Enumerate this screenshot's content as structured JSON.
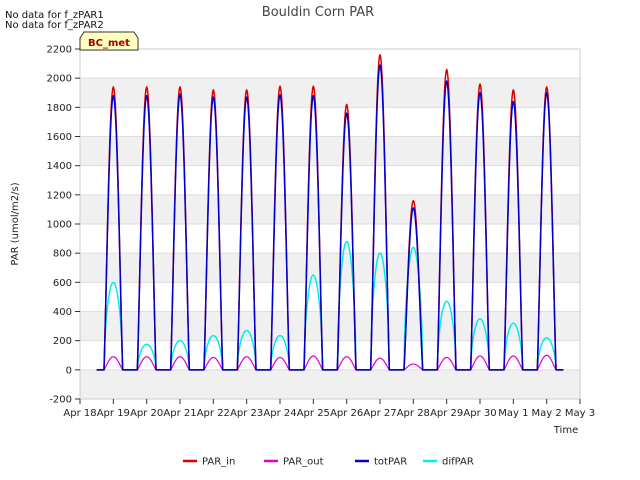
{
  "chart_data": {
    "type": "line",
    "title": "Bouldin Corn PAR",
    "xlabel": "Time",
    "ylabel": "PAR (umol/m2/s)",
    "ylim": [
      -200,
      2200
    ],
    "yticks": [
      -200,
      0,
      200,
      400,
      600,
      800,
      1000,
      1200,
      1400,
      1600,
      1800,
      2000,
      2200
    ],
    "xlim": [
      0,
      15
    ],
    "xtick_labels": [
      "Apr 18",
      "Apr 19",
      "Apr 20",
      "Apr 21",
      "Apr 22",
      "Apr 23",
      "Apr 24",
      "Apr 25",
      "Apr 26",
      "Apr 27",
      "Apr 28",
      "Apr 29",
      "Apr 30",
      "May 1",
      "May 2",
      "May 3"
    ],
    "notes": [
      "No data for f_zPAR1",
      "No data for f_zPAR2"
    ],
    "badge": "BC_met",
    "day_index": [
      1,
      2,
      3,
      4,
      5,
      6,
      7,
      8,
      9,
      10,
      11,
      12,
      13,
      14
    ],
    "series": [
      {
        "name": "PAR_in",
        "color": "#dd0000",
        "daily_peak": [
          1940,
          1940,
          1940,
          1920,
          1920,
          1945,
          1945,
          1820,
          2160,
          1160,
          2060,
          1960,
          1920,
          1940
        ]
      },
      {
        "name": "PAR_out",
        "color": "#dd00dd",
        "daily_peak": [
          90,
          90,
          90,
          85,
          90,
          85,
          95,
          90,
          80,
          40,
          85,
          95,
          95,
          100
        ]
      },
      {
        "name": "totPAR",
        "color": "#0000cc",
        "daily_peak": [
          1880,
          1880,
          1890,
          1870,
          1870,
          1885,
          1880,
          1760,
          2090,
          1110,
          1980,
          1900,
          1840,
          1900
        ]
      },
      {
        "name": "difPAR",
        "color": "#00eeee",
        "daily_peak": [
          600,
          175,
          200,
          235,
          270,
          235,
          650,
          880,
          800,
          840,
          470,
          350,
          320,
          220
        ]
      }
    ],
    "legend_position": "bottom-center",
    "grid": true
  }
}
